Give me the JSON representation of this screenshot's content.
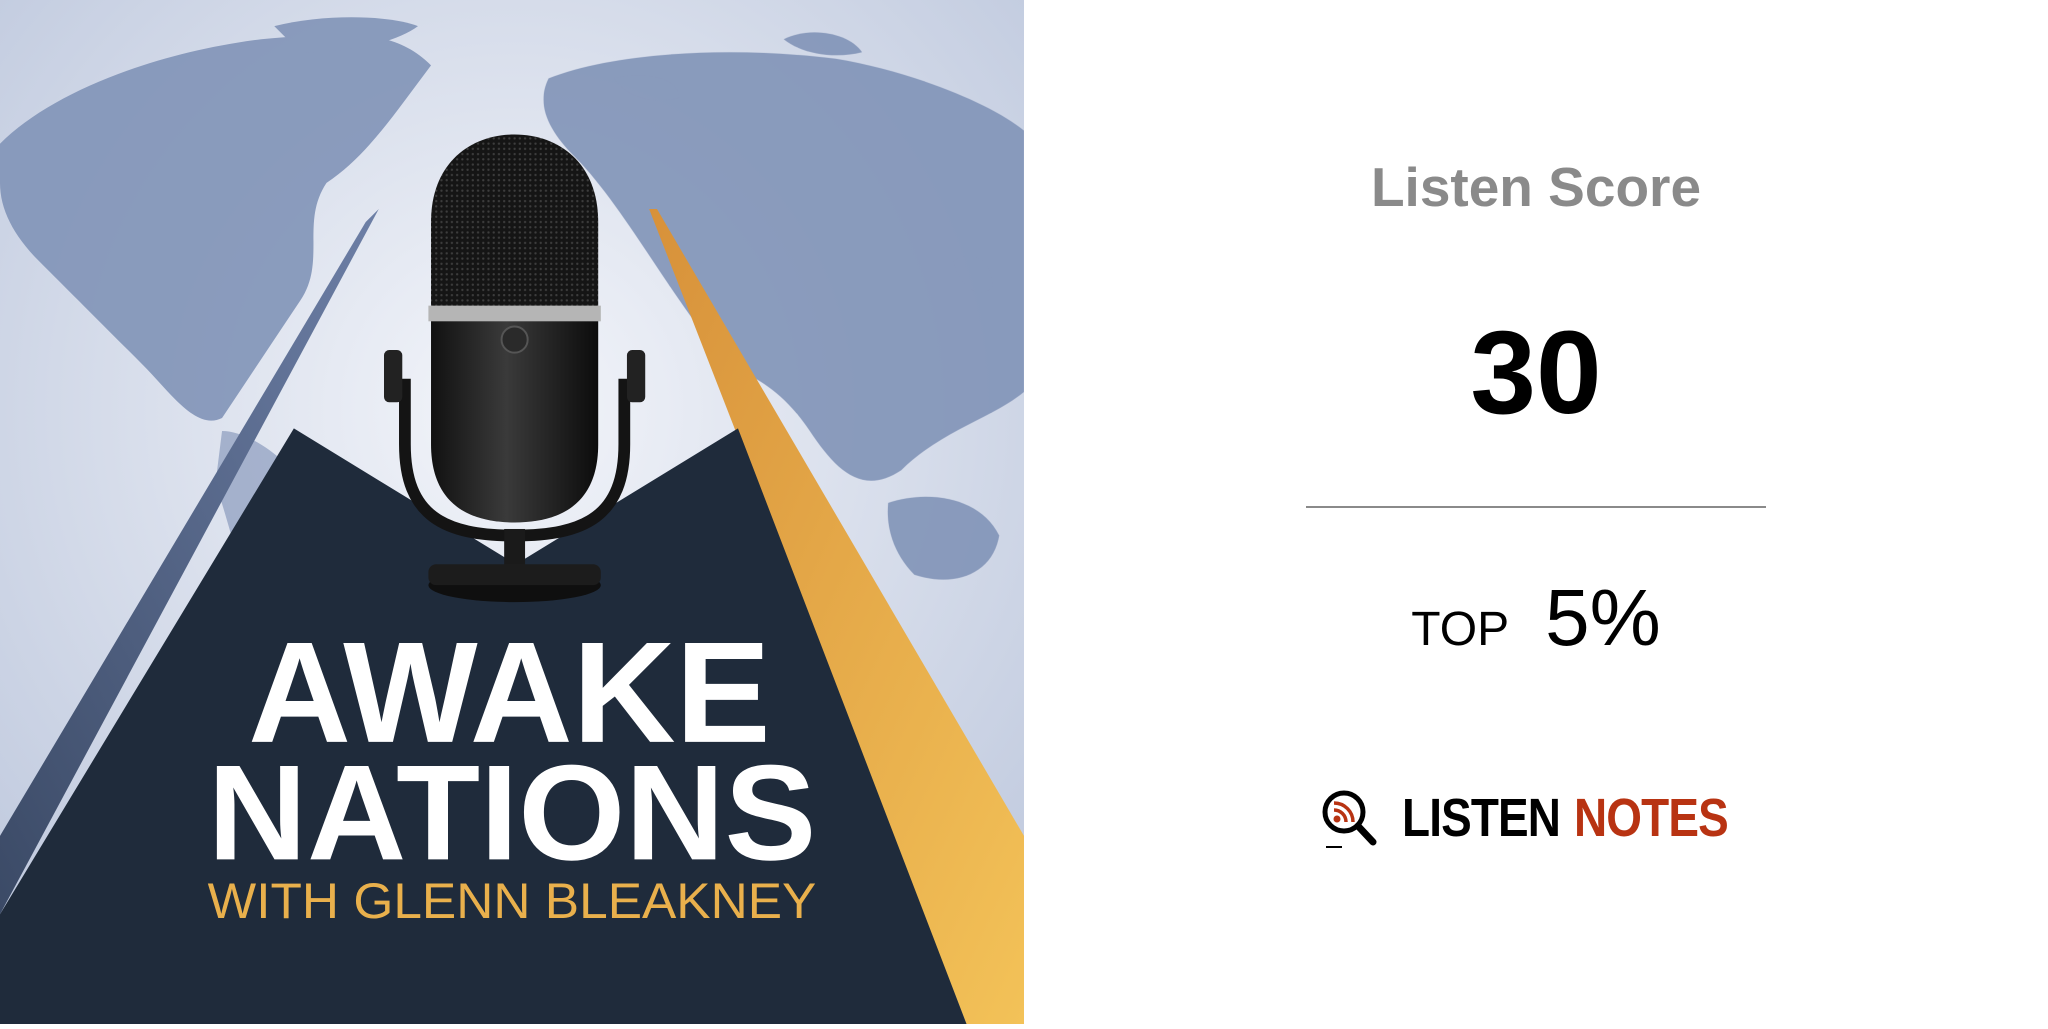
{
  "cover": {
    "line1": "AWAKE",
    "line2": "NATIONS",
    "line3": "WITH GLENN BLEAKNEY",
    "colors": {
      "navy": "#1f2b3b",
      "gold": "#e9b04c",
      "map": "#8193b7",
      "sky": "#dfe5f0"
    }
  },
  "score_panel": {
    "title": "Listen Score",
    "score": "30",
    "rank_label": "TOP",
    "rank_value": "5%"
  },
  "brand": {
    "word1": "LISTEN",
    "word2": "NOTES",
    "icon": "magnifier-rss-icon",
    "accent": "#b83312"
  }
}
